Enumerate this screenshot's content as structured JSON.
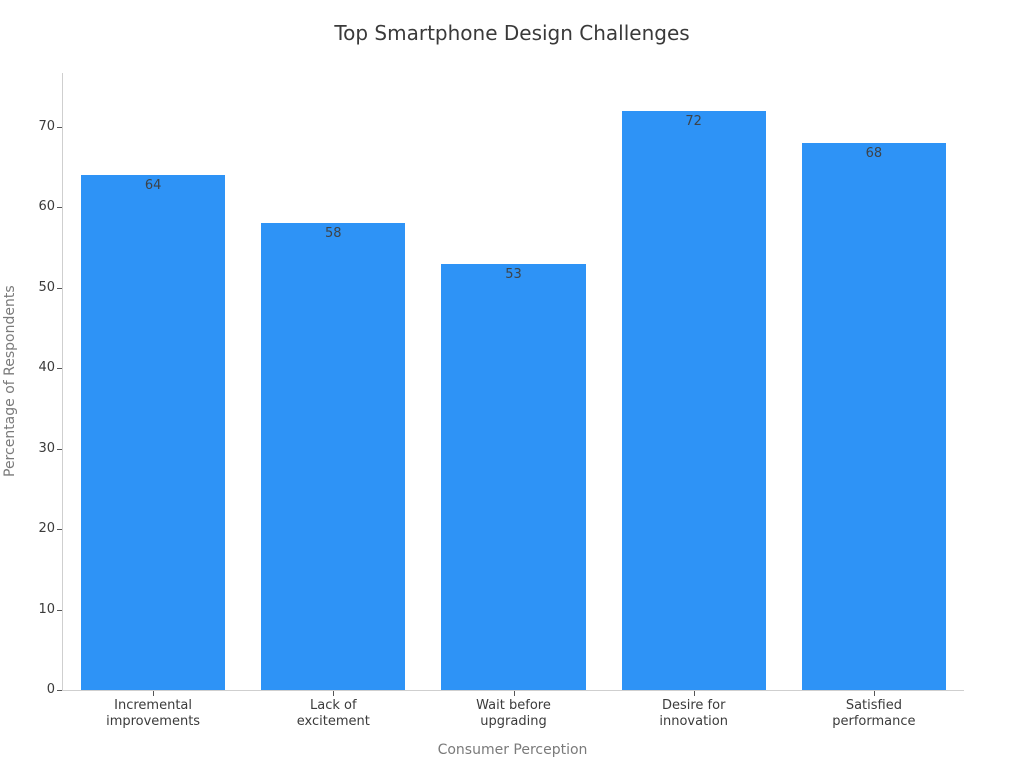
{
  "chart_data": {
    "type": "bar",
    "title": "Top Smartphone Design Challenges",
    "xlabel": "Consumer Perception",
    "ylabel": "Percentage of Respondents",
    "categories": [
      "Incremental\nimprovements",
      "Lack of\nexcitement",
      "Wait before\nupgrading",
      "Desire for\ninnovation",
      "Satisfied\nperformance"
    ],
    "values": [
      64,
      58,
      53,
      72,
      68
    ],
    "yticks": [
      0,
      10,
      20,
      30,
      40,
      50,
      60,
      70
    ],
    "ylim": [
      0,
      76.7
    ],
    "bar_color": "#2E93F6",
    "grid": false,
    "legend": false,
    "value_labels_shown": true
  }
}
